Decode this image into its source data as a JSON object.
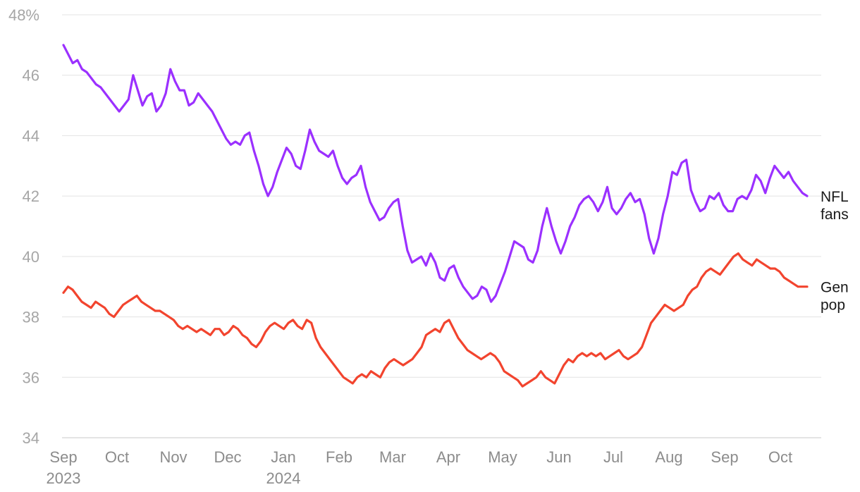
{
  "chart_data": {
    "type": "line",
    "title": "",
    "xlabel": "",
    "ylabel": "",
    "ylim": [
      34,
      48
    ],
    "y_ticks": [
      {
        "value": 48,
        "label": "48%"
      },
      {
        "value": 46,
        "label": "46"
      },
      {
        "value": 44,
        "label": "44"
      },
      {
        "value": 42,
        "label": "42"
      },
      {
        "value": 40,
        "label": "40"
      },
      {
        "value": 38,
        "label": "38"
      },
      {
        "value": 36,
        "label": "36"
      },
      {
        "value": 34,
        "label": "34"
      }
    ],
    "x_ticks": [
      {
        "month": "Sep",
        "year": "2023"
      },
      {
        "month": "Oct",
        "year": ""
      },
      {
        "month": "Nov",
        "year": ""
      },
      {
        "month": "Dec",
        "year": ""
      },
      {
        "month": "Jan",
        "year": "2024"
      },
      {
        "month": "Feb",
        "year": ""
      },
      {
        "month": "Mar",
        "year": ""
      },
      {
        "month": "Apr",
        "year": ""
      },
      {
        "month": "May",
        "year": ""
      },
      {
        "month": "Jun",
        "year": ""
      },
      {
        "month": "Jul",
        "year": ""
      },
      {
        "month": "Aug",
        "year": ""
      },
      {
        "month": "Sep",
        "year": ""
      },
      {
        "month": "Oct",
        "year": ""
      }
    ],
    "grid": true,
    "legend": "direct labels at right end of lines",
    "series": [
      {
        "name": "NFL fans",
        "label_lines": [
          "NFL",
          "fans"
        ],
        "color": "#9b30ff",
        "values": [
          47.0,
          46.7,
          46.4,
          46.5,
          46.2,
          46.1,
          45.9,
          45.7,
          45.6,
          45.4,
          45.2,
          45.0,
          44.8,
          45.0,
          45.2,
          46.0,
          45.5,
          45.0,
          45.3,
          45.4,
          44.8,
          45.0,
          45.4,
          46.2,
          45.8,
          45.5,
          45.5,
          45.0,
          45.1,
          45.4,
          45.2,
          45.0,
          44.8,
          44.5,
          44.2,
          43.9,
          43.7,
          43.8,
          43.7,
          44.0,
          44.1,
          43.5,
          43.0,
          42.4,
          42.0,
          42.3,
          42.8,
          43.2,
          43.6,
          43.4,
          43.0,
          42.9,
          43.5,
          44.2,
          43.8,
          43.5,
          43.4,
          43.3,
          43.5,
          43.0,
          42.6,
          42.4,
          42.6,
          42.7,
          43.0,
          42.3,
          41.8,
          41.5,
          41.2,
          41.3,
          41.6,
          41.8,
          41.9,
          41.0,
          40.2,
          39.8,
          39.9,
          40.0,
          39.7,
          40.1,
          39.8,
          39.3,
          39.2,
          39.6,
          39.7,
          39.3,
          39.0,
          38.8,
          38.6,
          38.7,
          39.0,
          38.9,
          38.5,
          38.7,
          39.1,
          39.5,
          40.0,
          40.5,
          40.4,
          40.3,
          39.9,
          39.8,
          40.2,
          41.0,
          41.6,
          41.0,
          40.5,
          40.1,
          40.5,
          41.0,
          41.3,
          41.7,
          41.9,
          42.0,
          41.8,
          41.5,
          41.8,
          42.3,
          41.6,
          41.4,
          41.6,
          41.9,
          42.1,
          41.8,
          41.9,
          41.4,
          40.6,
          40.1,
          40.6,
          41.4,
          42.0,
          42.8,
          42.7,
          43.1,
          43.2,
          42.2,
          41.8,
          41.5,
          41.6,
          42.0,
          41.9,
          42.1,
          41.7,
          41.5,
          41.5,
          41.9,
          42.0,
          41.9,
          42.2,
          42.7,
          42.5,
          42.1,
          42.6,
          43.0,
          42.8,
          42.6,
          42.8,
          42.5,
          42.3,
          42.1,
          42.0
        ]
      },
      {
        "name": "Gen pop",
        "label_lines": [
          "Gen",
          "pop"
        ],
        "color": "#f2442e",
        "values": [
          38.8,
          39.0,
          38.9,
          38.7,
          38.5,
          38.4,
          38.3,
          38.5,
          38.4,
          38.3,
          38.1,
          38.0,
          38.2,
          38.4,
          38.5,
          38.6,
          38.7,
          38.5,
          38.4,
          38.3,
          38.2,
          38.2,
          38.1,
          38.0,
          37.9,
          37.7,
          37.6,
          37.7,
          37.6,
          37.5,
          37.6,
          37.5,
          37.4,
          37.6,
          37.6,
          37.4,
          37.5,
          37.7,
          37.6,
          37.4,
          37.3,
          37.1,
          37.0,
          37.2,
          37.5,
          37.7,
          37.8,
          37.7,
          37.6,
          37.8,
          37.9,
          37.7,
          37.6,
          37.9,
          37.8,
          37.3,
          37.0,
          36.8,
          36.6,
          36.4,
          36.2,
          36.0,
          35.9,
          35.8,
          36.0,
          36.1,
          36.0,
          36.2,
          36.1,
          36.0,
          36.3,
          36.5,
          36.6,
          36.5,
          36.4,
          36.5,
          36.6,
          36.8,
          37.0,
          37.4,
          37.5,
          37.6,
          37.5,
          37.8,
          37.9,
          37.6,
          37.3,
          37.1,
          36.9,
          36.8,
          36.7,
          36.6,
          36.7,
          36.8,
          36.7,
          36.5,
          36.2,
          36.1,
          36.0,
          35.9,
          35.7,
          35.8,
          35.9,
          36.0,
          36.2,
          36.0,
          35.9,
          35.8,
          36.1,
          36.4,
          36.6,
          36.5,
          36.7,
          36.8,
          36.7,
          36.8,
          36.7,
          36.8,
          36.6,
          36.7,
          36.8,
          36.9,
          36.7,
          36.6,
          36.7,
          36.8,
          37.0,
          37.4,
          37.8,
          38.0,
          38.2,
          38.4,
          38.3,
          38.2,
          38.3,
          38.4,
          38.7,
          38.9,
          39.0,
          39.3,
          39.5,
          39.6,
          39.5,
          39.4,
          39.6,
          39.8,
          40.0,
          40.1,
          39.9,
          39.8,
          39.7,
          39.9,
          39.8,
          39.7,
          39.6,
          39.6,
          39.5,
          39.3,
          39.2,
          39.1,
          39.0,
          39.0,
          39.0
        ]
      }
    ]
  }
}
